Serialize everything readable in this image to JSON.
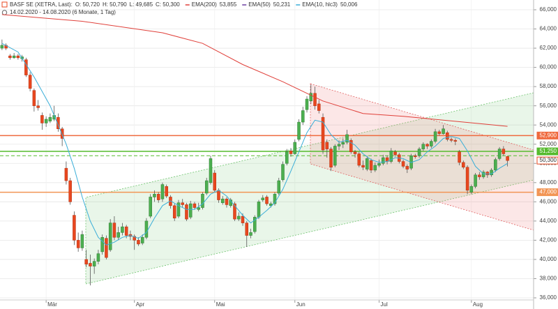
{
  "chart_data": {
    "type": "candlestick",
    "title": "BASF SE (XETRA, Last):",
    "ohlc": [
      "O: 50,720",
      "H: 50,790",
      "L: 49,685",
      "C: 50,300"
    ],
    "subtitle": "14.02.2020 - 14.08.2020 (6 Monate, 1 Tag)",
    "colors": {
      "up": "#4caf50",
      "down": "#e8471f",
      "wick": "#555"
    },
    "xlim": [
      -0.5,
      132.5
    ],
    "ylim": [
      35.5,
      66.6
    ],
    "grid": true,
    "xticks": [
      {
        "value": 11,
        "label": "Mär"
      },
      {
        "value": 33,
        "label": "Apr"
      },
      {
        "value": 53,
        "label": "Mai"
      },
      {
        "value": 73,
        "label": "Jun"
      },
      {
        "value": 94,
        "label": "Jul"
      },
      {
        "value": 117,
        "label": "Aug"
      }
    ],
    "yticks": [
      {
        "value": 36,
        "label": "36,000"
      },
      {
        "value": 38,
        "label": "38,000"
      },
      {
        "value": 40,
        "label": "40,000"
      },
      {
        "value": 42,
        "label": "42,000"
      },
      {
        "value": 44,
        "label": "44,000"
      },
      {
        "value": 46,
        "label": "46,000"
      },
      {
        "value": 48,
        "label": "48,000"
      },
      {
        "value": 50,
        "label": "50,000"
      },
      {
        "value": 52,
        "label": "52,000"
      },
      {
        "value": 54,
        "label": "54,000"
      },
      {
        "value": 56,
        "label": "56,000"
      },
      {
        "value": 58,
        "label": "58,000"
      },
      {
        "value": 60,
        "label": "60,000"
      },
      {
        "value": 62,
        "label": "62,000"
      },
      {
        "value": 64,
        "label": "64,000"
      },
      {
        "value": 66,
        "label": "66,000"
      }
    ],
    "candles": [
      [
        62.0,
        62.9,
        61.8,
        62.3
      ],
      [
        62.3,
        62.5,
        61.8,
        62.0
      ],
      [
        61.2,
        61.4,
        60.8,
        61.0
      ],
      [
        61.0,
        61.5,
        60.9,
        61.2
      ],
      [
        61.2,
        61.4,
        60.8,
        61.0
      ],
      [
        60.9,
        61.3,
        60.6,
        61.1
      ],
      [
        60.8,
        61.0,
        59.0,
        59.2
      ],
      [
        59.2,
        59.5,
        57.5,
        57.8
      ],
      [
        57.6,
        57.8,
        55.4,
        56.0
      ],
      [
        56.0,
        56.6,
        55.5,
        55.8
      ],
      [
        55.0,
        55.3,
        53.5,
        54.2
      ],
      [
        54.2,
        54.9,
        53.8,
        54.6
      ],
      [
        54.4,
        55.2,
        54.2,
        54.8
      ],
      [
        54.6,
        56.0,
        54.4,
        55.0
      ],
      [
        54.8,
        55.2,
        53.3,
        53.6
      ],
      [
        53.6,
        53.8,
        51.8,
        52.6
      ],
      [
        49.5,
        50.2,
        47.8,
        48.2
      ],
      [
        48.2,
        48.5,
        45.7,
        46.0
      ],
      [
        44.6,
        45.0,
        41.5,
        42.0
      ],
      [
        42.0,
        42.8,
        40.8,
        41.2
      ],
      [
        41.2,
        43.0,
        40.9,
        42.6
      ],
      [
        40.0,
        41.0,
        39.2,
        39.5
      ],
      [
        39.6,
        40.5,
        37.3,
        39.3
      ],
      [
        39.3,
        40.1,
        38.5,
        39.8
      ],
      [
        39.8,
        41.0,
        39.5,
        40.6
      ],
      [
        40.8,
        42.6,
        40.5,
        42.3
      ],
      [
        42.2,
        42.5,
        40.0,
        40.2
      ],
      [
        41.0,
        44.2,
        40.8,
        43.8
      ],
      [
        43.8,
        44.5,
        42.0,
        42.3
      ],
      [
        42.3,
        43.4,
        42.0,
        42.8
      ],
      [
        42.8,
        43.8,
        42.5,
        43.4
      ],
      [
        43.4,
        43.6,
        42.2,
        42.5
      ],
      [
        42.6,
        43.0,
        42.0,
        42.4
      ],
      [
        42.4,
        42.6,
        41.0,
        42.0
      ],
      [
        42.0,
        42.3,
        41.4,
        41.6
      ],
      [
        41.7,
        42.6,
        41.5,
        42.3
      ],
      [
        42.3,
        44.3,
        42.1,
        44.0
      ],
      [
        44.5,
        46.8,
        44.3,
        46.5
      ],
      [
        46.5,
        47.2,
        46.0,
        46.8
      ],
      [
        46.8,
        47.0,
        45.9,
        46.2
      ],
      [
        46.3,
        48.0,
        46.0,
        47.8
      ],
      [
        47.6,
        47.8,
        46.4,
        46.6
      ],
      [
        46.5,
        46.7,
        45.3,
        45.6
      ],
      [
        45.6,
        45.8,
        44.0,
        44.3
      ],
      [
        44.5,
        46.2,
        44.3,
        45.9
      ],
      [
        45.9,
        46.3,
        45.4,
        45.7
      ],
      [
        45.7,
        45.9,
        44.0,
        44.2
      ],
      [
        44.4,
        46.1,
        44.2,
        45.8
      ],
      [
        45.8,
        46.0,
        45.2,
        45.4
      ],
      [
        45.2,
        45.9,
        45.0,
        45.4
      ],
      [
        45.4,
        47.0,
        45.2,
        46.8
      ],
      [
        46.9,
        48.5,
        46.7,
        48.2
      ],
      [
        48.0,
        50.8,
        47.8,
        50.5
      ],
      [
        49.0,
        49.3,
        47.0,
        47.2
      ],
      [
        47.2,
        47.4,
        45.9,
        46.2
      ],
      [
        45.9,
        46.6,
        45.7,
        46.3
      ],
      [
        46.3,
        46.5,
        45.4,
        45.7
      ],
      [
        45.6,
        46.4,
        45.4,
        46.2
      ],
      [
        45.8,
        46.0,
        44.0,
        44.2
      ],
      [
        44.2,
        44.9,
        44.0,
        44.5
      ],
      [
        44.5,
        44.8,
        43.5,
        43.8
      ],
      [
        43.8,
        44.0,
        41.3,
        42.5
      ],
      [
        42.5,
        43.2,
        42.2,
        42.8
      ],
      [
        42.9,
        44.6,
        42.7,
        44.4
      ],
      [
        44.4,
        46.2,
        44.2,
        46.0
      ],
      [
        46.2,
        46.7,
        46.0,
        46.4
      ],
      [
        46.5,
        46.7,
        45.6,
        45.8
      ],
      [
        45.6,
        46.0,
        45.4,
        45.8
      ],
      [
        45.8,
        47.0,
        45.6,
        46.8
      ],
      [
        46.9,
        48.5,
        46.7,
        48.2
      ],
      [
        48.3,
        50.2,
        48.1,
        49.9
      ],
      [
        50.0,
        51.5,
        49.8,
        51.2
      ],
      [
        51.3,
        51.6,
        50.7,
        51.0
      ],
      [
        51.0,
        52.5,
        50.9,
        52.2
      ],
      [
        52.5,
        54.6,
        52.3,
        54.3
      ],
      [
        54.3,
        55.9,
        54.0,
        55.5
      ],
      [
        55.6,
        57.0,
        55.3,
        56.7
      ],
      [
        56.5,
        58.2,
        56.2,
        57.3
      ],
      [
        57.3,
        58.0,
        55.6,
        56.0
      ],
      [
        56.2,
        56.6,
        55.2,
        55.5
      ],
      [
        54.8,
        55.2,
        51.0,
        51.4
      ],
      [
        52.2,
        52.5,
        50.6,
        51.5
      ],
      [
        51.5,
        51.7,
        49.2,
        49.6
      ],
      [
        49.8,
        52.0,
        49.6,
        51.8
      ],
      [
        51.8,
        52.4,
        51.4,
        52.0
      ],
      [
        52.0,
        52.6,
        51.6,
        52.2
      ],
      [
        52.2,
        53.5,
        52.0,
        53.0
      ],
      [
        52.4,
        52.6,
        51.0,
        51.2
      ],
      [
        51.2,
        51.4,
        50.6,
        51.0
      ],
      [
        51.0,
        51.2,
        49.6,
        49.8
      ],
      [
        49.8,
        50.3,
        49.3,
        49.6
      ],
      [
        49.4,
        50.8,
        49.2,
        50.5
      ],
      [
        50.3,
        50.5,
        49.0,
        49.3
      ],
      [
        49.3,
        50.1,
        49.1,
        49.8
      ],
      [
        49.8,
        50.4,
        49.6,
        50.0
      ],
      [
        50.0,
        50.9,
        49.8,
        50.6
      ],
      [
        50.6,
        50.8,
        49.9,
        50.2
      ],
      [
        50.2,
        51.6,
        50.0,
        51.3
      ],
      [
        51.2,
        51.4,
        50.7,
        50.9
      ],
      [
        50.9,
        51.1,
        50.0,
        50.2
      ],
      [
        50.2,
        50.4,
        49.5,
        49.7
      ],
      [
        49.7,
        49.9,
        49.0,
        49.4
      ],
      [
        49.5,
        51.0,
        49.3,
        50.8
      ],
      [
        50.8,
        51.0,
        50.5,
        50.7
      ],
      [
        50.8,
        51.7,
        50.6,
        51.5
      ],
      [
        51.5,
        52.2,
        51.3,
        52.0
      ],
      [
        52.0,
        52.1,
        51.5,
        51.8
      ],
      [
        51.8,
        52.5,
        51.6,
        52.3
      ],
      [
        52.3,
        53.6,
        52.1,
        53.3
      ],
      [
        53.3,
        53.5,
        52.9,
        53.1
      ],
      [
        53.1,
        54.0,
        53.0,
        53.6
      ],
      [
        53.2,
        53.4,
        52.3,
        52.5
      ],
      [
        52.5,
        52.7,
        52.2,
        52.4
      ],
      [
        52.4,
        52.6,
        51.9,
        52.3
      ],
      [
        51.2,
        51.4,
        49.8,
        50.1
      ],
      [
        50.1,
        50.3,
        49.4,
        49.6
      ],
      [
        49.6,
        49.8,
        46.8,
        47.2
      ],
      [
        47.0,
        47.8,
        46.8,
        47.6
      ],
      [
        47.6,
        49.0,
        47.4,
        48.8
      ],
      [
        48.8,
        49.1,
        48.3,
        48.6
      ],
      [
        48.6,
        49.3,
        48.4,
        49.1
      ],
      [
        49.1,
        49.2,
        48.5,
        48.8
      ],
      [
        48.8,
        49.5,
        48.6,
        49.3
      ],
      [
        49.3,
        50.6,
        49.1,
        50.4
      ],
      [
        50.5,
        51.7,
        50.3,
        51.5
      ],
      [
        51.5,
        51.8,
        50.8,
        51.0
      ],
      [
        50.72,
        50.79,
        49.685,
        50.3
      ]
    ],
    "indicators": [
      {
        "name": "EMA(200)",
        "last": "53,855",
        "color": "#e0403a",
        "x": [
          0,
          20,
          40,
          50,
          60,
          70,
          80,
          90,
          100,
          110,
          120,
          126
        ],
        "values": [
          65.5,
          64.8,
          63.6,
          62.5,
          60.3,
          58.5,
          56.5,
          55.2,
          54.9,
          54.5,
          54.1,
          53.86
        ]
      },
      {
        "name": "EMA(50)",
        "last": "50,231",
        "color": "#6a3fa0"
      },
      {
        "name": "EMA(10, hlc3)",
        "last": "50,006",
        "color": "#3aaed8",
        "x": [
          0,
          4,
          8,
          12,
          16,
          18,
          20,
          22,
          24,
          26,
          28,
          30,
          32,
          34,
          36,
          38,
          40,
          42,
          44,
          46,
          48,
          50,
          52,
          54,
          56,
          58,
          60,
          62,
          64,
          66,
          68,
          70,
          72,
          74,
          76,
          78,
          80,
          82,
          84,
          86,
          88,
          90,
          92,
          94,
          96,
          98,
          100,
          102,
          104,
          106,
          108,
          110,
          112,
          114,
          116,
          118,
          120,
          122,
          124,
          126
        ],
        "values": [
          62.5,
          61.6,
          59,
          56,
          52,
          49.5,
          46.5,
          44,
          42.3,
          41.5,
          41.8,
          42.3,
          42.5,
          42.2,
          42.8,
          44.3,
          45.6,
          46.1,
          45.6,
          45.2,
          45.2,
          45.8,
          46.8,
          47.2,
          46.6,
          45.6,
          44.6,
          43.8,
          44.4,
          45.1,
          45.9,
          47.3,
          49.2,
          51.2,
          53.2,
          54.5,
          54.3,
          53.0,
          52.2,
          52.4,
          51.9,
          51.0,
          50.4,
          50.1,
          50.2,
          50.6,
          50.5,
          50.1,
          50.4,
          51.2,
          51.8,
          52.6,
          52.8,
          52.6,
          51.3,
          49.7,
          48.9,
          48.9,
          49.5,
          50.0
        ]
      }
    ],
    "levels": [
      {
        "value": 52.9,
        "label": "52,900",
        "color": "#ef6a3e",
        "style": "solid"
      },
      {
        "value": 51.25,
        "label": "51,250",
        "color": "#56bb2e",
        "style": "solid"
      },
      {
        "value": 50.8,
        "color": "#56bb2e",
        "style": "dashed"
      },
      {
        "value": 50.3,
        "label": "50,300",
        "color": "#e8471f",
        "style": "none"
      },
      {
        "value": 47.0,
        "label": "47,000",
        "color": "#f29555",
        "style": "solid"
      }
    ]
  }
}
